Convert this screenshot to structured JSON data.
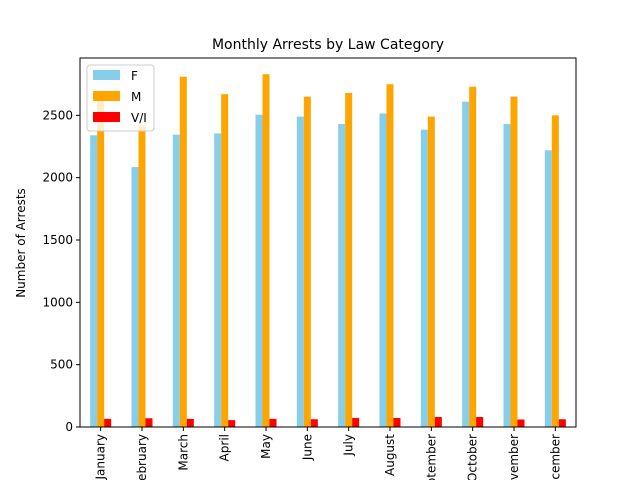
{
  "chart_data": {
    "type": "bar",
    "title": "Monthly Arrests by Law Category",
    "xlabel": "",
    "ylabel": "Number of Arrests",
    "categories": [
      "January",
      "February",
      "March",
      "April",
      "May",
      "June",
      "July",
      "August",
      "September",
      "October",
      "November",
      "December"
    ],
    "series": [
      {
        "name": "F",
        "color": "#87ceeb",
        "values": [
          2340,
          2085,
          2345,
          2355,
          2505,
          2490,
          2430,
          2515,
          2385,
          2610,
          2430,
          2220
        ]
      },
      {
        "name": "M",
        "color": "#ffa500",
        "values": [
          2650,
          2420,
          2810,
          2670,
          2830,
          2650,
          2680,
          2750,
          2490,
          2730,
          2650,
          2500
        ]
      },
      {
        "name": "V/I",
        "color": "#ff0000",
        "values": [
          65,
          70,
          65,
          55,
          65,
          62,
          72,
          72,
          80,
          80,
          60,
          62
        ]
      }
    ],
    "ylim": [
      0,
      2960
    ],
    "yticks": [
      0,
      500,
      1000,
      1500,
      2000,
      2500
    ],
    "grid": false,
    "legend_position": "top-left"
  }
}
